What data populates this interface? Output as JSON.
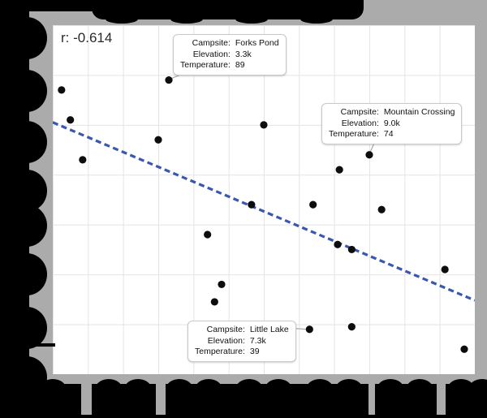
{
  "correlation_label": "r: -0.614",
  "colors": {
    "background": "#ababab",
    "plot_background": "#ffffff",
    "gridline": "#e4e4e4",
    "point": "#0d0d0d",
    "trendline": "#3a57b0",
    "tooltip_border": "#c9c9c9",
    "leader_line": "#aaaaaa",
    "redaction": "#000000"
  },
  "chart_data": {
    "type": "scatter",
    "correlation_r": -0.614,
    "x_axis": {
      "field": "Elevation",
      "range_k": [
        0,
        12
      ],
      "gridline_step_k": 1,
      "tick_labels_redacted": true
    },
    "y_axis": {
      "field": "Temperature",
      "range": [
        30,
        100
      ],
      "gridline_step": 10,
      "tick_labels_redacted": true
    },
    "title_redacted": true,
    "points": [
      {
        "campsite": "Forks Pond",
        "elevation_k": 3.3,
        "temperature": 89
      },
      {
        "elevation_k": 0.25,
        "temperature": 87
      },
      {
        "elevation_k": 0.5,
        "temperature": 81
      },
      {
        "elevation_k": 6.0,
        "temperature": 80
      },
      {
        "elevation_k": 3.0,
        "temperature": 77
      },
      {
        "elevation_k": 0.85,
        "temperature": 73
      },
      {
        "campsite": "Mountain Crossing",
        "elevation_k": 9.0,
        "temperature": 74
      },
      {
        "elevation_k": 8.15,
        "temperature": 71
      },
      {
        "elevation_k": 5.65,
        "temperature": 64
      },
      {
        "elevation_k": 7.4,
        "temperature": 64
      },
      {
        "elevation_k": 9.35,
        "temperature": 63
      },
      {
        "elevation_k": 4.4,
        "temperature": 58
      },
      {
        "elevation_k": 8.1,
        "temperature": 56
      },
      {
        "elevation_k": 8.5,
        "temperature": 55
      },
      {
        "elevation_k": 11.15,
        "temperature": 51
      },
      {
        "elevation_k": 4.8,
        "temperature": 48
      },
      {
        "elevation_k": 4.6,
        "temperature": 44.5
      },
      {
        "elevation_k": 8.5,
        "temperature": 39.5
      },
      {
        "campsite": "Little Lake",
        "elevation_k": 7.3,
        "temperature": 39
      },
      {
        "elevation_k": 11.7,
        "temperature": 35
      }
    ],
    "trendline": {
      "style": "dashed",
      "start": {
        "elevation_k": 0,
        "temperature": 80.5
      },
      "end": {
        "elevation_k": 12,
        "temperature": 44.8
      }
    }
  },
  "tooltips": [
    {
      "id": "forks-pond",
      "rows": [
        {
          "label": "Campsite:",
          "value": "Forks Pond"
        },
        {
          "label": "Elevation:",
          "value": "3.3k"
        },
        {
          "label": "Temperature:",
          "value": "89"
        }
      ]
    },
    {
      "id": "mountain-crossing",
      "rows": [
        {
          "label": "Campsite:",
          "value": "Mountain Crossing"
        },
        {
          "label": "Elevation:",
          "value": "9.0k"
        },
        {
          "label": "Temperature:",
          "value": "74"
        }
      ]
    },
    {
      "id": "little-lake",
      "rows": [
        {
          "label": "Campsite:",
          "value": "Little Lake"
        },
        {
          "label": "Elevation:",
          "value": "7.3k"
        },
        {
          "label": "Temperature:",
          "value": "39"
        }
      ]
    }
  ]
}
